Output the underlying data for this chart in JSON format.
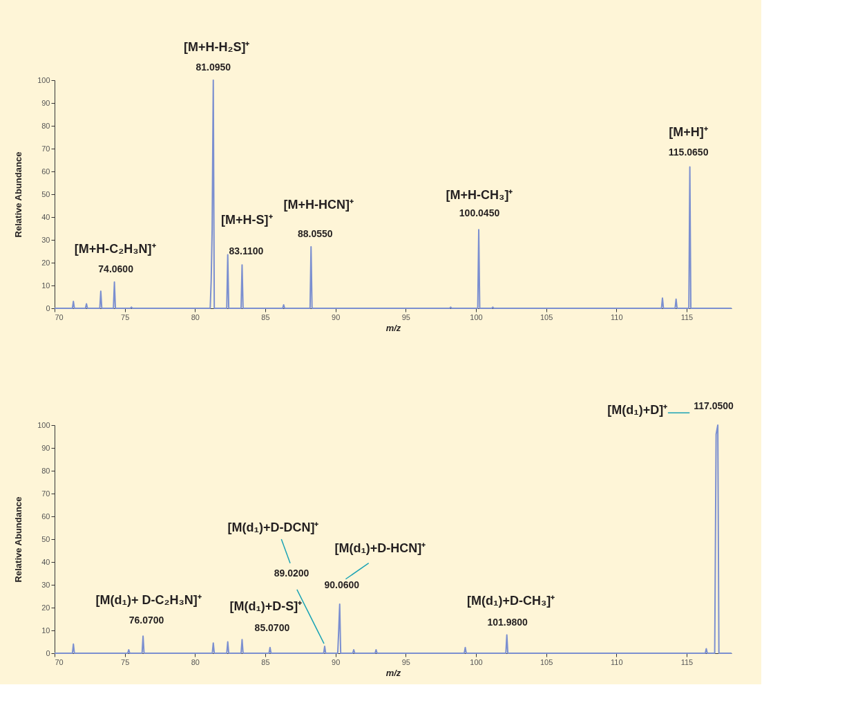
{
  "chart_data": [
    {
      "type": "line",
      "xlabel": "m/z",
      "ylabel": "Relative Abundance",
      "xlim": [
        70,
        118.2
      ],
      "ylim": [
        0,
        100
      ],
      "xticks": [
        70,
        75,
        80,
        85,
        90,
        95,
        100,
        105,
        110,
        115
      ],
      "yticks": [
        0,
        10,
        20,
        30,
        40,
        50,
        60,
        70,
        80,
        90,
        100
      ],
      "grid": false,
      "marker": "none",
      "line_style": "solid",
      "series": [
        {
          "color": "#7b8fd0",
          "x": [
            70,
            71.27,
            71.34,
            71.41,
            72.2,
            72.27,
            72.34,
            73.22,
            73.29,
            73.36,
            74.19,
            74.26,
            74.33,
            75.4,
            75.47,
            75.54,
            81.08,
            81.15,
            81.22,
            81.3,
            81.37,
            82.26,
            82.33,
            82.4,
            83.28,
            83.35,
            83.42,
            86.24,
            86.31,
            86.38,
            88.19,
            88.26,
            88.33,
            98.13,
            98.2,
            98.27,
            100.13,
            100.2,
            100.27,
            101.13,
            101.2,
            101.27,
            113.21,
            113.28,
            113.35,
            114.18,
            114.25,
            114.32,
            115.16,
            115.23,
            115.3,
            118.2
          ],
          "values": [
            0,
            0,
            3,
            0,
            0,
            2,
            0,
            0,
            7.5,
            0,
            0,
            11.5,
            0,
            0,
            0.5,
            0,
            0,
            12,
            35,
            100,
            0,
            0,
            23.5,
            0,
            0,
            19,
            0,
            0,
            1.5,
            0,
            0,
            27,
            0,
            0,
            0.5,
            0,
            0,
            34.5,
            0,
            0,
            0.5,
            0,
            0,
            4.5,
            0,
            0,
            4,
            0,
            0,
            62,
            0,
            0
          ]
        }
      ],
      "annotations": [
        {
          "text": "[M+H-C₂H₃N]⁺",
          "x": 74.26,
          "y": 11.5
        },
        {
          "text": "74.0600",
          "x": 74.26,
          "y": 11.5
        },
        {
          "text": "[M+H-H₂S]⁺",
          "x": 81.3,
          "y": 100
        },
        {
          "text": "81.0950",
          "x": 81.3,
          "y": 100
        },
        "[M+H-S]⁺",
        {
          "text": "83.1100",
          "x": 83.35,
          "y": 19
        },
        "[M+H-HCN]⁺",
        {
          "text": "88.0550",
          "x": 88.26,
          "y": 27
        },
        {
          "text": "[M+H-CH₃]⁺",
          "x": 100.2,
          "y": 34.5
        },
        {
          "text": "100.0450",
          "x": 100.2,
          "y": 34.5
        },
        {
          "text": "[M+H]⁺",
          "x": 115.23,
          "y": 62
        },
        {
          "text": "115.0650",
          "x": 115.23,
          "y": 62
        }
      ]
    },
    {
      "type": "line",
      "xlabel": "m/z",
      "ylabel": "Relative Abundance",
      "xlim": [
        70,
        118.2
      ],
      "ylim": [
        0,
        100
      ],
      "xticks": [
        70,
        75,
        80,
        85,
        90,
        95,
        100,
        105,
        110,
        115
      ],
      "yticks": [
        0,
        10,
        20,
        30,
        40,
        50,
        60,
        70,
        80,
        90,
        100
      ],
      "grid": false,
      "marker": "none",
      "line_style": "solid",
      "series": [
        {
          "color": "#7b8fd0",
          "x": [
            70,
            71.27,
            71.34,
            71.41,
            75.21,
            75.28,
            75.35,
            76.23,
            76.3,
            76.37,
            81.23,
            81.3,
            81.37,
            82.26,
            82.33,
            82.4,
            83.28,
            83.35,
            83.42,
            85.27,
            85.34,
            85.41,
            89.16,
            89.23,
            89.3,
            90.16,
            90.23,
            90.3,
            90.37,
            91.23,
            91.3,
            91.37,
            92.82,
            92.89,
            92.96,
            99.17,
            99.24,
            99.31,
            102.13,
            102.2,
            102.27,
            116.33,
            116.4,
            116.47,
            117.0,
            117.1,
            117.22,
            117.3,
            118.2
          ],
          "values": [
            0,
            0,
            4,
            0,
            0,
            1.5,
            0,
            0,
            7.5,
            0,
            0,
            4.5,
            0,
            0,
            5,
            0,
            0,
            6,
            0,
            0,
            2.5,
            0,
            0,
            3,
            0,
            0,
            10,
            21.5,
            0,
            0,
            1.5,
            0,
            0,
            1.5,
            0,
            0,
            2.5,
            0,
            0,
            8,
            0,
            0,
            2,
            0,
            0,
            96,
            100,
            0,
            0
          ]
        }
      ],
      "annotations": [
        {
          "text": "[M(d₁)+ D-C₂H₃N]⁺",
          "x": 76.3,
          "y": 7.5
        },
        {
          "text": "76.0700",
          "x": 76.3,
          "y": 7.5
        },
        {
          "text": "[M(d₁)+D-S]⁺",
          "x": 85.34,
          "y": 2.5
        },
        {
          "text": "85.0700",
          "x": 85.34,
          "y": 2.5
        },
        "[M(d₁)+D-DCN]⁺",
        {
          "text": "89.0200",
          "x": 89.23,
          "y": 3
        },
        "[M(d₁)+D-HCN]⁺",
        {
          "text": "90.0600",
          "x": 90.3,
          "y": 21.5
        },
        {
          "text": "[M(d₁)+D-CH₃]⁺",
          "x": 102.2,
          "y": 8
        },
        {
          "text": "101.9800",
          "x": 102.2,
          "y": 8
        },
        "[M(d₁)+D]⁺",
        {
          "text": "117.0500",
          "x": 117.22,
          "y": 100
        }
      ]
    }
  ]
}
